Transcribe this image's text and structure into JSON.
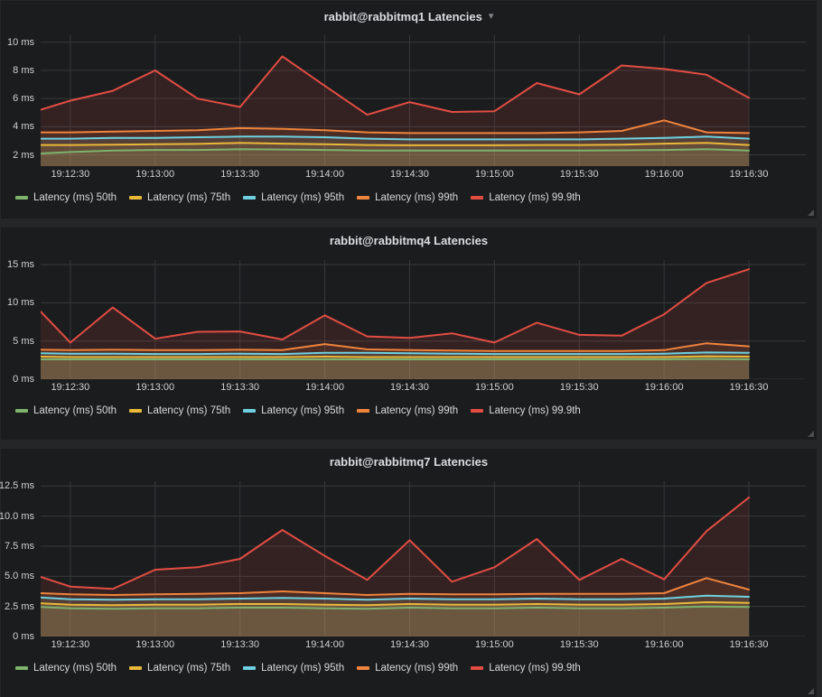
{
  "panels": [
    {
      "menu_caret": true
    },
    {
      "menu_caret": false
    },
    {
      "menu_caret": false
    }
  ],
  "palette": {
    "p50": "#7EB26D",
    "p75": "#EAB839",
    "p95": "#6ED0E0",
    "p99": "#EF843C",
    "p999": "#E24D42"
  },
  "chart_data": [
    {
      "type": "area",
      "title": "rabbit@rabbitmq1 Latencies",
      "ylabel": "ms",
      "ylim": [
        1.2,
        10.5
      ],
      "x_min": 0,
      "x_max": 270.6,
      "grid": true,
      "legend_position": "bottom-left",
      "y_ticks": [
        {
          "v": 2,
          "label": "2 ms"
        },
        {
          "v": 4,
          "label": "4 ms"
        },
        {
          "v": 6,
          "label": "6 ms"
        },
        {
          "v": 8,
          "label": "8 ms"
        },
        {
          "v": 10,
          "label": "10 ms"
        }
      ],
      "x_ticks": [
        {
          "t": 10.5,
          "label": "19:12:30"
        },
        {
          "t": 40.5,
          "label": "19:13:00"
        },
        {
          "t": 70.5,
          "label": "19:13:30"
        },
        {
          "t": 100.5,
          "label": "19:14:00"
        },
        {
          "t": 130.5,
          "label": "19:14:30"
        },
        {
          "t": 160.5,
          "label": "19:15:00"
        },
        {
          "t": 190.5,
          "label": "19:15:30"
        },
        {
          "t": 220.5,
          "label": "19:16:00"
        },
        {
          "t": 250.5,
          "label": "19:16:30"
        }
      ],
      "x_seconds": [
        0,
        10.5,
        25.5,
        40.5,
        55.5,
        70.5,
        85.5,
        100.5,
        115.5,
        130.5,
        145.5,
        160.5,
        175.5,
        190.5,
        205.5,
        220.5,
        235.5,
        250.5
      ],
      "x_times": [
        "19:12:20",
        "19:12:30",
        "19:12:45",
        "19:13:00",
        "19:13:15",
        "19:13:30",
        "19:13:45",
        "19:14:00",
        "19:14:15",
        "19:14:30",
        "19:14:45",
        "19:15:00",
        "19:15:15",
        "19:15:30",
        "19:15:45",
        "19:16:00",
        "19:16:15",
        "19:16:30"
      ],
      "series": [
        {
          "name": "Latency (ms) 50th",
          "color": "#7EB26D",
          "values": [
            2.1,
            2.2,
            2.3,
            2.35,
            2.35,
            2.4,
            2.38,
            2.35,
            2.3,
            2.3,
            2.3,
            2.3,
            2.3,
            2.3,
            2.32,
            2.35,
            2.4,
            2.3
          ]
        },
        {
          "name": "Latency (ms) 75th",
          "color": "#EAB839",
          "values": [
            2.7,
            2.7,
            2.72,
            2.75,
            2.78,
            2.85,
            2.8,
            2.75,
            2.7,
            2.68,
            2.68,
            2.68,
            2.7,
            2.7,
            2.72,
            2.8,
            2.85,
            2.7
          ]
        },
        {
          "name": "Latency (ms) 95th",
          "color": "#6ED0E0",
          "values": [
            3.15,
            3.15,
            3.2,
            3.2,
            3.25,
            3.3,
            3.3,
            3.25,
            3.15,
            3.1,
            3.1,
            3.1,
            3.1,
            3.1,
            3.15,
            3.2,
            3.3,
            3.15
          ]
        },
        {
          "name": "Latency (ms) 99th",
          "color": "#EF843C",
          "values": [
            3.6,
            3.6,
            3.65,
            3.7,
            3.75,
            3.9,
            3.85,
            3.75,
            3.6,
            3.55,
            3.55,
            3.55,
            3.55,
            3.6,
            3.7,
            4.45,
            3.6,
            3.55
          ]
        },
        {
          "name": "Latency (ms) 99.9th",
          "color": "#E24D42",
          "values": [
            5.2,
            5.85,
            6.55,
            8.0,
            6.0,
            5.4,
            9.0,
            6.9,
            4.85,
            5.75,
            5.05,
            5.1,
            7.1,
            6.3,
            8.35,
            8.1,
            7.7,
            6.05
          ]
        }
      ]
    },
    {
      "type": "area",
      "title": "rabbit@rabbitmq4 Latencies",
      "ylabel": "ms",
      "ylim": [
        0,
        15.6
      ],
      "x_min": 0,
      "x_max": 270.6,
      "grid": true,
      "legend_position": "bottom-left",
      "y_ticks": [
        {
          "v": 0,
          "label": "0 ms"
        },
        {
          "v": 5,
          "label": "5 ms"
        },
        {
          "v": 10,
          "label": "10 ms"
        },
        {
          "v": 15,
          "label": "15 ms"
        }
      ],
      "x_ticks": [
        {
          "t": 10.5,
          "label": "19:12:30"
        },
        {
          "t": 40.5,
          "label": "19:13:00"
        },
        {
          "t": 70.5,
          "label": "19:13:30"
        },
        {
          "t": 100.5,
          "label": "19:14:00"
        },
        {
          "t": 130.5,
          "label": "19:14:30"
        },
        {
          "t": 160.5,
          "label": "19:15:00"
        },
        {
          "t": 190.5,
          "label": "19:15:30"
        },
        {
          "t": 220.5,
          "label": "19:16:00"
        },
        {
          "t": 250.5,
          "label": "19:16:30"
        }
      ],
      "x_seconds": [
        0,
        10.5,
        25.5,
        40.5,
        55.5,
        70.5,
        85.5,
        100.5,
        115.5,
        130.5,
        145.5,
        160.5,
        175.5,
        190.5,
        205.5,
        220.5,
        235.5,
        250.5
      ],
      "x_times": [
        "19:12:20",
        "19:12:30",
        "19:12:45",
        "19:13:00",
        "19:13:15",
        "19:13:30",
        "19:13:45",
        "19:14:00",
        "19:14:15",
        "19:14:30",
        "19:14:45",
        "19:15:00",
        "19:15:15",
        "19:15:30",
        "19:15:45",
        "19:16:00",
        "19:16:15",
        "19:16:30"
      ],
      "series": [
        {
          "name": "Latency (ms) 50th",
          "color": "#7EB26D",
          "values": [
            2.6,
            2.6,
            2.6,
            2.6,
            2.6,
            2.6,
            2.6,
            2.6,
            2.6,
            2.6,
            2.6,
            2.6,
            2.6,
            2.6,
            2.6,
            2.6,
            2.65,
            2.6
          ]
        },
        {
          "name": "Latency (ms) 75th",
          "color": "#EAB839",
          "values": [
            2.95,
            2.9,
            2.9,
            2.9,
            2.9,
            2.9,
            2.9,
            2.95,
            2.9,
            2.9,
            2.9,
            2.9,
            2.9,
            2.9,
            2.9,
            2.9,
            3.0,
            2.95
          ]
        },
        {
          "name": "Latency (ms) 95th",
          "color": "#6ED0E0",
          "values": [
            3.4,
            3.35,
            3.35,
            3.3,
            3.3,
            3.35,
            3.3,
            3.45,
            3.45,
            3.4,
            3.35,
            3.3,
            3.3,
            3.3,
            3.3,
            3.35,
            3.5,
            3.45
          ]
        },
        {
          "name": "Latency (ms) 99th",
          "color": "#EF843C",
          "values": [
            3.85,
            3.8,
            3.85,
            3.8,
            3.8,
            3.85,
            3.8,
            4.6,
            3.9,
            3.8,
            3.75,
            3.7,
            3.7,
            3.7,
            3.7,
            3.8,
            4.7,
            4.3
          ]
        },
        {
          "name": "Latency (ms) 99.9th",
          "color": "#E24D42",
          "values": [
            8.85,
            4.8,
            9.4,
            5.3,
            6.2,
            6.25,
            5.2,
            8.35,
            5.6,
            5.4,
            6.0,
            4.8,
            7.4,
            5.8,
            5.7,
            8.5,
            12.6,
            14.4
          ]
        }
      ]
    },
    {
      "type": "area",
      "title": "rabbit@rabbitmq7 Latencies",
      "ylabel": "ms",
      "ylim": [
        0,
        12.9
      ],
      "x_min": 0,
      "x_max": 270.6,
      "grid": true,
      "legend_position": "bottom-left",
      "y_ticks": [
        {
          "v": 0,
          "label": "0 ms"
        },
        {
          "v": 2.5,
          "label": "2.5 ms"
        },
        {
          "v": 5,
          "label": "5.0 ms"
        },
        {
          "v": 7.5,
          "label": "7.5 ms"
        },
        {
          "v": 10,
          "label": "10.0 ms"
        },
        {
          "v": 12.5,
          "label": "12.5 ms"
        }
      ],
      "x_ticks": [
        {
          "t": 10.5,
          "label": "19:12:30"
        },
        {
          "t": 40.5,
          "label": "19:13:00"
        },
        {
          "t": 70.5,
          "label": "19:13:30"
        },
        {
          "t": 100.5,
          "label": "19:14:00"
        },
        {
          "t": 130.5,
          "label": "19:14:30"
        },
        {
          "t": 160.5,
          "label": "19:15:00"
        },
        {
          "t": 190.5,
          "label": "19:15:30"
        },
        {
          "t": 220.5,
          "label": "19:16:00"
        },
        {
          "t": 250.5,
          "label": "19:16:30"
        }
      ],
      "x_seconds": [
        0,
        10.5,
        25.5,
        40.5,
        55.5,
        70.5,
        85.5,
        100.5,
        115.5,
        130.5,
        145.5,
        160.5,
        175.5,
        190.5,
        205.5,
        220.5,
        235.5,
        250.5
      ],
      "x_times": [
        "19:12:20",
        "19:12:30",
        "19:12:45",
        "19:13:00",
        "19:13:15",
        "19:13:30",
        "19:13:45",
        "19:14:00",
        "19:14:15",
        "19:14:30",
        "19:14:45",
        "19:15:00",
        "19:15:15",
        "19:15:30",
        "19:15:45",
        "19:16:00",
        "19:16:15",
        "19:16:30"
      ],
      "series": [
        {
          "name": "Latency (ms) 50th",
          "color": "#7EB26D",
          "values": [
            2.45,
            2.35,
            2.3,
            2.35,
            2.35,
            2.4,
            2.4,
            2.35,
            2.3,
            2.4,
            2.35,
            2.35,
            2.4,
            2.35,
            2.35,
            2.4,
            2.5,
            2.45
          ]
        },
        {
          "name": "Latency (ms) 75th",
          "color": "#EAB839",
          "values": [
            2.75,
            2.65,
            2.6,
            2.65,
            2.65,
            2.7,
            2.7,
            2.65,
            2.6,
            2.7,
            2.65,
            2.65,
            2.7,
            2.65,
            2.65,
            2.7,
            2.85,
            2.8
          ]
        },
        {
          "name": "Latency (ms) 95th",
          "color": "#6ED0E0",
          "values": [
            3.25,
            3.1,
            3.05,
            3.1,
            3.1,
            3.15,
            3.2,
            3.15,
            3.05,
            3.15,
            3.1,
            3.1,
            3.15,
            3.1,
            3.1,
            3.15,
            3.4,
            3.3
          ]
        },
        {
          "name": "Latency (ms) 99th",
          "color": "#EF843C",
          "values": [
            3.6,
            3.5,
            3.45,
            3.5,
            3.55,
            3.6,
            3.75,
            3.6,
            3.45,
            3.55,
            3.5,
            3.5,
            3.55,
            3.55,
            3.55,
            3.6,
            4.85,
            3.9
          ]
        },
        {
          "name": "Latency (ms) 99.9th",
          "color": "#E24D42",
          "values": [
            4.95,
            4.15,
            3.95,
            5.55,
            5.75,
            6.45,
            8.85,
            6.7,
            4.7,
            8.0,
            4.55,
            5.75,
            8.1,
            4.7,
            6.45,
            4.75,
            8.75,
            11.55
          ]
        }
      ]
    }
  ]
}
